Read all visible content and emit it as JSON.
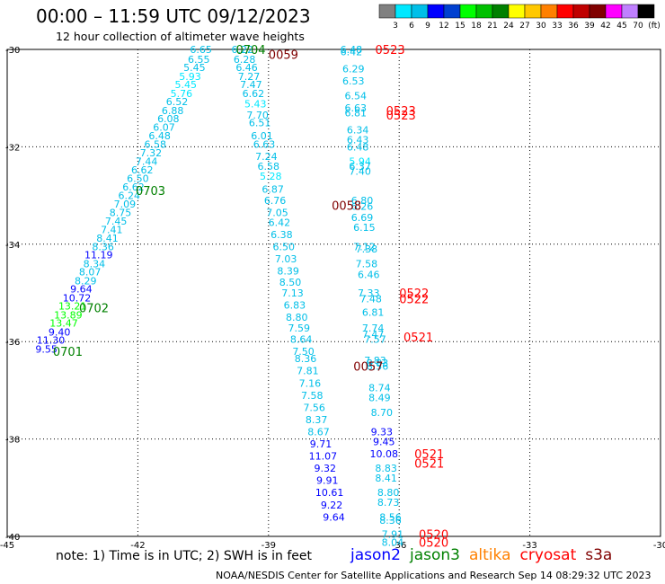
{
  "header": {
    "title": "00:00 – 11:59 UTC 09/12/2023",
    "subtitle": "12 hour collection of altimeter wave heights"
  },
  "colorbar": {
    "labels": [
      "3",
      "6",
      "9",
      "12",
      "15",
      "18",
      "21",
      "24",
      "27",
      "30",
      "33",
      "36",
      "39",
      "42",
      "45",
      "70",
      "(ft)"
    ],
    "colors": [
      "#808080",
      "#00e8ff",
      "#00bfe8",
      "#0000ff",
      "#0040d0",
      "#00ff00",
      "#00c000",
      "#008000",
      "#ffff00",
      "#ffc800",
      "#ff8000",
      "#ff0000",
      "#c00000",
      "#800000",
      "#ff00ff",
      "#c080ff",
      "#000000"
    ]
  },
  "footer": {
    "note": "note: 1) Time is in UTC; 2) SWH is in feet",
    "credit": "NOAA/NESDIS Center for Satellite Applications and Research   Sep 14 08:29:32 UTC 2023"
  },
  "satellites": [
    {
      "name": "jason2",
      "color": "#0000ff"
    },
    {
      "name": "jason3",
      "color": "#008000"
    },
    {
      "name": "altika",
      "color": "#ff8000"
    },
    {
      "name": "cryosat",
      "color": "#ff0000"
    },
    {
      "name": "s3a",
      "color": "#800000"
    }
  ],
  "chart_data": {
    "type": "scatter",
    "xlim": [
      -45,
      -30
    ],
    "ylim": [
      -40,
      -30
    ],
    "x_ticks": [
      -45,
      -42,
      -39,
      -36,
      -33,
      -30
    ],
    "x_tick_labels": [
      "-45",
      "-42",
      "-39",
      "-36",
      "-33",
      "-30"
    ],
    "y_ticks": [
      -30,
      -32,
      -34,
      -36,
      -38,
      -40
    ],
    "y_tick_labels": [
      "-30",
      "-32",
      "-34",
      "-36",
      "-38",
      "-40"
    ],
    "grid": true,
    "points": [
      {
        "x": -40.55,
        "y": -30.0,
        "label": "6.65",
        "color": "#00bfe8"
      },
      {
        "x": -40.6,
        "y": -30.2,
        "label": "6.55",
        "color": "#00bfe8"
      },
      {
        "x": -40.7,
        "y": -30.37,
        "label": "5.45",
        "color": "#00bfe8"
      },
      {
        "x": -40.8,
        "y": -30.55,
        "label": "5.93",
        "color": "#00e8ff"
      },
      {
        "x": -40.9,
        "y": -30.72,
        "label": "5.45",
        "color": "#00e8ff"
      },
      {
        "x": -41.0,
        "y": -30.9,
        "label": "5.76",
        "color": "#00e8ff"
      },
      {
        "x": -41.1,
        "y": -31.07,
        "label": "6.52",
        "color": "#00bfe8"
      },
      {
        "x": -41.2,
        "y": -31.25,
        "label": "6.88",
        "color": "#00bfe8"
      },
      {
        "x": -41.3,
        "y": -31.42,
        "label": "6.08",
        "color": "#00bfe8"
      },
      {
        "x": -41.4,
        "y": -31.6,
        "label": "6.07",
        "color": "#00bfe8"
      },
      {
        "x": -41.5,
        "y": -31.77,
        "label": "6.48",
        "color": "#00bfe8"
      },
      {
        "x": -41.6,
        "y": -31.95,
        "label": "6.58",
        "color": "#00bfe8"
      },
      {
        "x": -41.7,
        "y": -32.12,
        "label": "7.32",
        "color": "#00bfe8"
      },
      {
        "x": -41.8,
        "y": -32.3,
        "label": "7.44",
        "color": "#00bfe8"
      },
      {
        "x": -41.9,
        "y": -32.47,
        "label": "6.62",
        "color": "#00bfe8"
      },
      {
        "x": -42.0,
        "y": -32.65,
        "label": "6.50",
        "color": "#00bfe8"
      },
      {
        "x": -42.1,
        "y": -32.82,
        "label": "6.62",
        "color": "#00bfe8"
      },
      {
        "x": -42.2,
        "y": -33.0,
        "label": "6.24",
        "color": "#00bfe8"
      },
      {
        "x": -42.3,
        "y": -33.17,
        "label": "7.09",
        "color": "#00bfe8"
      },
      {
        "x": -42.4,
        "y": -33.35,
        "label": "8.75",
        "color": "#00bfe8"
      },
      {
        "x": -42.5,
        "y": -33.52,
        "label": "7.45",
        "color": "#00bfe8"
      },
      {
        "x": -42.6,
        "y": -33.7,
        "label": "7.41",
        "color": "#00bfe8"
      },
      {
        "x": -42.7,
        "y": -33.87,
        "label": "8.41",
        "color": "#00bfe8"
      },
      {
        "x": -42.8,
        "y": -34.05,
        "label": "8.36",
        "color": "#00bfe8"
      },
      {
        "x": -42.9,
        "y": -34.22,
        "label": "11.19",
        "color": "#0000ff"
      },
      {
        "x": -43.0,
        "y": -34.4,
        "label": "8.34",
        "color": "#00bfe8"
      },
      {
        "x": -43.1,
        "y": -34.57,
        "label": "8.07",
        "color": "#00bfe8"
      },
      {
        "x": -43.2,
        "y": -34.75,
        "label": "8.29",
        "color": "#00bfe8"
      },
      {
        "x": -43.3,
        "y": -34.92,
        "label": "9.64",
        "color": "#0000ff"
      },
      {
        "x": -43.4,
        "y": -35.1,
        "label": "10.72",
        "color": "#0000ff"
      },
      {
        "x": -43.5,
        "y": -35.27,
        "label": "13.21",
        "color": "#00ff00"
      },
      {
        "x": -43.6,
        "y": -35.45,
        "label": "13.89",
        "color": "#00ff00"
      },
      {
        "x": -43.7,
        "y": -35.62,
        "label": "13.47",
        "color": "#00ff00"
      },
      {
        "x": -43.8,
        "y": -35.8,
        "label": "9.40",
        "color": "#0000ff"
      },
      {
        "x": -44.0,
        "y": -35.97,
        "label": "11.30",
        "color": "#0000ff"
      },
      {
        "x": -44.1,
        "y": -36.15,
        "label": "9.55",
        "color": "#0000ff"
      },
      {
        "x": -39.6,
        "y": -30.0,
        "label": "6.22",
        "color": "#00bfe8"
      },
      {
        "x": -39.55,
        "y": -30.2,
        "label": "6.28",
        "color": "#00bfe8"
      },
      {
        "x": -39.5,
        "y": -30.37,
        "label": "6.46",
        "color": "#00bfe8"
      },
      {
        "x": -39.45,
        "y": -30.55,
        "label": "7.27",
        "color": "#00bfe8"
      },
      {
        "x": -39.4,
        "y": -30.72,
        "label": "7.47",
        "color": "#00bfe8"
      },
      {
        "x": -39.35,
        "y": -30.9,
        "label": "6.62",
        "color": "#00bfe8"
      },
      {
        "x": -39.3,
        "y": -31.12,
        "label": "5.43",
        "color": "#00e8ff"
      },
      {
        "x": -39.25,
        "y": -31.35,
        "label": "7.70",
        "color": "#00bfe8"
      },
      {
        "x": -39.2,
        "y": -31.5,
        "label": "6.51",
        "color": "#00bfe8"
      },
      {
        "x": -39.15,
        "y": -31.77,
        "label": "6.01",
        "color": "#00bfe8"
      },
      {
        "x": -39.1,
        "y": -31.95,
        "label": "6.63",
        "color": "#00bfe8"
      },
      {
        "x": -39.05,
        "y": -32.2,
        "label": "7.24",
        "color": "#00bfe8"
      },
      {
        "x": -39.0,
        "y": -32.4,
        "label": "6.58",
        "color": "#00bfe8"
      },
      {
        "x": -38.95,
        "y": -32.6,
        "label": "5.28",
        "color": "#00e8ff"
      },
      {
        "x": -38.9,
        "y": -32.87,
        "label": "6.87",
        "color": "#00bfe8"
      },
      {
        "x": -38.85,
        "y": -33.1,
        "label": "6.76",
        "color": "#00bfe8"
      },
      {
        "x": -38.8,
        "y": -33.35,
        "label": "7.05",
        "color": "#00bfe8"
      },
      {
        "x": -38.75,
        "y": -33.55,
        "label": "6.42",
        "color": "#00bfe8"
      },
      {
        "x": -38.7,
        "y": -33.8,
        "label": "6.38",
        "color": "#00bfe8"
      },
      {
        "x": -38.65,
        "y": -34.05,
        "label": "6.50",
        "color": "#00bfe8"
      },
      {
        "x": -38.6,
        "y": -34.3,
        "label": "7.03",
        "color": "#00bfe8"
      },
      {
        "x": -38.55,
        "y": -34.55,
        "label": "8.39",
        "color": "#00bfe8"
      },
      {
        "x": -38.5,
        "y": -34.78,
        "label": "8.50",
        "color": "#00bfe8"
      },
      {
        "x": -38.45,
        "y": -35.0,
        "label": "7.13",
        "color": "#00bfe8"
      },
      {
        "x": -38.4,
        "y": -35.25,
        "label": "6.83",
        "color": "#00bfe8"
      },
      {
        "x": -38.35,
        "y": -35.5,
        "label": "8.80",
        "color": "#00bfe8"
      },
      {
        "x": -38.3,
        "y": -35.72,
        "label": "7.59",
        "color": "#00bfe8"
      },
      {
        "x": -38.25,
        "y": -35.95,
        "label": "8.64",
        "color": "#00bfe8"
      },
      {
        "x": -38.2,
        "y": -36.2,
        "label": "7.50",
        "color": "#00bfe8"
      },
      {
        "x": -38.15,
        "y": -36.35,
        "label": "8.36",
        "color": "#00bfe8"
      },
      {
        "x": -38.1,
        "y": -36.6,
        "label": "7.81",
        "color": "#00bfe8"
      },
      {
        "x": -38.05,
        "y": -36.85,
        "label": "7.16",
        "color": "#00bfe8"
      },
      {
        "x": -38.0,
        "y": -37.1,
        "label": "7.58",
        "color": "#00bfe8"
      },
      {
        "x": -37.95,
        "y": -37.35,
        "label": "7.56",
        "color": "#00bfe8"
      },
      {
        "x": -37.9,
        "y": -37.6,
        "label": "8.37",
        "color": "#00bfe8"
      },
      {
        "x": -37.85,
        "y": -37.85,
        "label": "8.67",
        "color": "#00bfe8"
      },
      {
        "x": -37.8,
        "y": -38.1,
        "label": "9.71",
        "color": "#0000ff"
      },
      {
        "x": -37.75,
        "y": -38.35,
        "label": "11.07",
        "color": "#0000ff"
      },
      {
        "x": -37.7,
        "y": -38.6,
        "label": "9.32",
        "color": "#0000ff"
      },
      {
        "x": -37.65,
        "y": -38.85,
        "label": "9.91",
        "color": "#0000ff"
      },
      {
        "x": -37.6,
        "y": -39.1,
        "label": "10.61",
        "color": "#0000ff"
      },
      {
        "x": -37.55,
        "y": -39.35,
        "label": "9.22",
        "color": "#0000ff"
      },
      {
        "x": -37.5,
        "y": -39.6,
        "label": "9.64",
        "color": "#0000ff"
      },
      {
        "x": -37.1,
        "y": -30.0,
        "label": "6.48",
        "color": "#00bfe8"
      },
      {
        "x": -37.1,
        "y": -30.05,
        "label": "6.42",
        "color": "#00bfe8"
      },
      {
        "x": -37.05,
        "y": -30.4,
        "label": "6.29",
        "color": "#00bfe8"
      },
      {
        "x": -37.05,
        "y": -30.65,
        "label": "6.53",
        "color": "#00bfe8"
      },
      {
        "x": -37.0,
        "y": -30.95,
        "label": "6.54",
        "color": "#00bfe8"
      },
      {
        "x": -37.0,
        "y": -31.2,
        "label": "6.63",
        "color": "#00bfe8"
      },
      {
        "x": -37.0,
        "y": -31.3,
        "label": "6.81",
        "color": "#00bfe8"
      },
      {
        "x": -36.95,
        "y": -31.65,
        "label": "6.34",
        "color": "#00bfe8"
      },
      {
        "x": -36.95,
        "y": -31.85,
        "label": "6.43",
        "color": "#00bfe8"
      },
      {
        "x": -36.95,
        "y": -32.0,
        "label": "6.48",
        "color": "#00bfe8"
      },
      {
        "x": -36.9,
        "y": -32.3,
        "label": "5.94",
        "color": "#00e8ff"
      },
      {
        "x": -36.9,
        "y": -32.4,
        "label": "6.37",
        "color": "#00bfe8"
      },
      {
        "x": -36.9,
        "y": -32.5,
        "label": "7.40",
        "color": "#00bfe8"
      },
      {
        "x": -36.85,
        "y": -33.1,
        "label": "6.80",
        "color": "#00bfe8"
      },
      {
        "x": -36.85,
        "y": -33.22,
        "label": "6.26",
        "color": "#00bfe8"
      },
      {
        "x": -36.85,
        "y": -33.45,
        "label": "6.69",
        "color": "#00bfe8"
      },
      {
        "x": -36.8,
        "y": -33.65,
        "label": "6.15",
        "color": "#00bfe8"
      },
      {
        "x": -36.8,
        "y": -34.05,
        "label": "7.12",
        "color": "#00bfe8"
      },
      {
        "x": -36.75,
        "y": -34.1,
        "label": "7.38",
        "color": "#00bfe8"
      },
      {
        "x": -36.75,
        "y": -34.4,
        "label": "7.58",
        "color": "#00bfe8"
      },
      {
        "x": -36.7,
        "y": -34.62,
        "label": "6.46",
        "color": "#00bfe8"
      },
      {
        "x": -36.7,
        "y": -35.0,
        "label": "7.33",
        "color": "#00bfe8"
      },
      {
        "x": -36.65,
        "y": -35.12,
        "label": "7.48",
        "color": "#00bfe8"
      },
      {
        "x": -36.6,
        "y": -35.4,
        "label": "6.81",
        "color": "#00bfe8"
      },
      {
        "x": -36.6,
        "y": -35.72,
        "label": "7.74",
        "color": "#00bfe8"
      },
      {
        "x": -36.6,
        "y": -35.85,
        "label": "7.47",
        "color": "#00bfe8"
      },
      {
        "x": -36.55,
        "y": -35.95,
        "label": "7.57",
        "color": "#00bfe8"
      },
      {
        "x": -36.55,
        "y": -36.38,
        "label": "7.83",
        "color": "#00bfe8"
      },
      {
        "x": -36.5,
        "y": -36.44,
        "label": "8.83",
        "color": "#00bfe8"
      },
      {
        "x": -36.5,
        "y": -36.5,
        "label": "8.56",
        "color": "#00bfe8"
      },
      {
        "x": -36.45,
        "y": -36.95,
        "label": "8.74",
        "color": "#00bfe8"
      },
      {
        "x": -36.45,
        "y": -37.15,
        "label": "8.49",
        "color": "#00bfe8"
      },
      {
        "x": -36.4,
        "y": -37.45,
        "label": "8.70",
        "color": "#00bfe8"
      },
      {
        "x": -36.4,
        "y": -37.85,
        "label": "9.33",
        "color": "#0000ff"
      },
      {
        "x": -36.35,
        "y": -38.05,
        "label": "9.45",
        "color": "#0000ff"
      },
      {
        "x": -36.35,
        "y": -38.3,
        "label": "10.08",
        "color": "#0000ff"
      },
      {
        "x": -36.3,
        "y": -38.6,
        "label": "8.83",
        "color": "#00bfe8"
      },
      {
        "x": -36.3,
        "y": -38.8,
        "label": "8.41",
        "color": "#00bfe8"
      },
      {
        "x": -36.25,
        "y": -39.1,
        "label": "8.80",
        "color": "#00bfe8"
      },
      {
        "x": -36.25,
        "y": -39.3,
        "label": "8.73",
        "color": "#00bfe8"
      },
      {
        "x": -36.2,
        "y": -39.6,
        "label": "8.56",
        "color": "#00bfe8"
      },
      {
        "x": -36.2,
        "y": -39.67,
        "label": "8.36",
        "color": "#00bfe8"
      },
      {
        "x": -36.15,
        "y": -39.95,
        "label": "7.91",
        "color": "#00bfe8"
      },
      {
        "x": -36.15,
        "y": -40.12,
        "label": "8.04",
        "color": "#00bfe8"
      }
    ],
    "time_labels": [
      {
        "x": -39.75,
        "y": -30.0,
        "label": "0704",
        "color": "#008000"
      },
      {
        "x": -42.05,
        "y": -32.9,
        "label": "0703",
        "color": "#008000"
      },
      {
        "x": -43.35,
        "y": -35.3,
        "label": "0702",
        "color": "#008000"
      },
      {
        "x": -43.95,
        "y": -36.2,
        "label": "0701",
        "color": "#008000"
      },
      {
        "x": -39.0,
        "y": -30.1,
        "label": "0059",
        "color": "#800000"
      },
      {
        "x": -37.55,
        "y": -33.2,
        "label": "0058",
        "color": "#800000"
      },
      {
        "x": -37.05,
        "y": -36.5,
        "label": "0057",
        "color": "#800000"
      },
      {
        "x": -36.55,
        "y": -30.0,
        "label": "0523",
        "color": "#ff0000"
      },
      {
        "x": -36.3,
        "y": -31.25,
        "label": "0523",
        "color": "#ff0000"
      },
      {
        "x": -36.3,
        "y": -31.35,
        "label": "0523",
        "color": "#ff0000"
      },
      {
        "x": -36.0,
        "y": -35.0,
        "label": "0522",
        "color": "#ff0000"
      },
      {
        "x": -36.0,
        "y": -35.12,
        "label": "0522",
        "color": "#ff0000"
      },
      {
        "x": -35.9,
        "y": -35.9,
        "label": "0521",
        "color": "#ff0000"
      },
      {
        "x": -35.65,
        "y": -38.3,
        "label": "0521",
        "color": "#ff0000"
      },
      {
        "x": -35.65,
        "y": -38.5,
        "label": "0521",
        "color": "#ff0000"
      },
      {
        "x": -35.55,
        "y": -39.95,
        "label": "0520",
        "color": "#ff0000"
      },
      {
        "x": -35.55,
        "y": -40.12,
        "label": "0520",
        "color": "#ff0000"
      }
    ]
  }
}
